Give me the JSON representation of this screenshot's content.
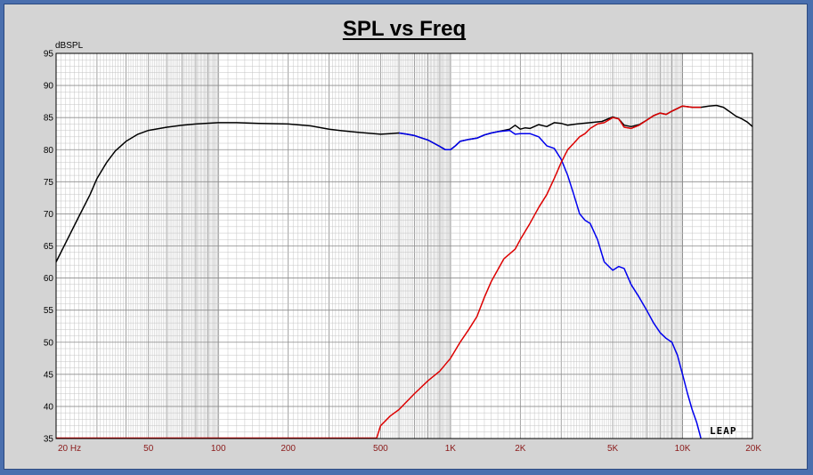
{
  "chart_data": {
    "type": "line",
    "title": "SPL vs Freq",
    "ylabel": "dBSPL",
    "xlabel": "",
    "x_scale": "log",
    "xlim": [
      20,
      20000
    ],
    "ylim": [
      35,
      95
    ],
    "grid": true,
    "y_ticks": [
      35,
      40,
      45,
      50,
      55,
      60,
      65,
      70,
      75,
      80,
      85,
      90,
      95
    ],
    "x_ticks": [
      {
        "value": 20,
        "label": "20  Hz"
      },
      {
        "value": 50,
        "label": "50"
      },
      {
        "value": 100,
        "label": "100"
      },
      {
        "value": 200,
        "label": "200"
      },
      {
        "value": 500,
        "label": "500"
      },
      {
        "value": 1000,
        "label": "1K"
      },
      {
        "value": 2000,
        "label": "2K"
      },
      {
        "value": 5000,
        "label": "5K"
      },
      {
        "value": 10000,
        "label": "10K"
      },
      {
        "value": 20000,
        "label": "20K"
      }
    ],
    "logo": "LEAP",
    "series": [
      {
        "color": "#000000",
        "x": [
          20,
          22,
          25,
          28,
          30,
          33,
          36,
          40,
          45,
          50,
          60,
          70,
          80,
          100,
          120,
          150,
          200,
          250,
          300,
          350,
          400,
          500,
          550,
          600,
          650,
          700,
          800,
          900,
          950,
          1000,
          1050,
          1100,
          1200,
          1300,
          1400,
          1500,
          1600,
          1800,
          1900,
          2000,
          2100,
          2200,
          2400,
          2600,
          2800,
          3000,
          3200,
          3500,
          4000,
          4500,
          5000,
          5300,
          5600,
          6000,
          6500,
          7000,
          7500,
          8000,
          8500,
          9000,
          10000,
          11000,
          12000,
          13000,
          14000,
          15000,
          16000,
          17000,
          18000,
          19000,
          20000
        ],
        "y": [
          62.5,
          65.5,
          69.5,
          73,
          75.5,
          78,
          79.8,
          81.3,
          82.4,
          83,
          83.5,
          83.8,
          84,
          84.2,
          84.2,
          84.1,
          84,
          83.7,
          83.2,
          82.9,
          82.7,
          82.4,
          82.5,
          82.6,
          82.4,
          82.2,
          81.5,
          80.5,
          80,
          80,
          80.6,
          81.3,
          81.6,
          81.8,
          82.3,
          82.6,
          82.8,
          83.2,
          83.8,
          83.2,
          83.4,
          83.3,
          83.9,
          83.6,
          84.2,
          84.1,
          83.8,
          84,
          84.2,
          84.4,
          85.1,
          84.8,
          83.8,
          83.6,
          83.9,
          84.6,
          85.3,
          85.7,
          85.5,
          86,
          86.8,
          86.6,
          86.6,
          86.8,
          86.9,
          86.6,
          85.9,
          85.2,
          84.8,
          84.3,
          83.6
        ]
      },
      {
        "color": "#0000ee",
        "x": [
          600,
          650,
          700,
          800,
          900,
          950,
          1000,
          1050,
          1100,
          1200,
          1300,
          1400,
          1500,
          1600,
          1800,
          1900,
          2000,
          2200,
          2400,
          2600,
          2800,
          3000,
          3200,
          3400,
          3600,
          3800,
          4000,
          4300,
          4600,
          5000,
          5300,
          5600,
          6000,
          6500,
          7000,
          7500,
          8000,
          8500,
          9000,
          9500,
          10000,
          10500,
          11000,
          11500,
          12000
        ],
        "y": [
          82.6,
          82.4,
          82.2,
          81.5,
          80.5,
          80,
          80,
          80.6,
          81.3,
          81.6,
          81.8,
          82.3,
          82.6,
          82.8,
          83,
          82.4,
          82.5,
          82.5,
          82,
          80.6,
          80.2,
          78.5,
          76,
          73,
          70,
          69,
          68.5,
          66,
          62.5,
          61.2,
          61.8,
          61.5,
          59,
          57,
          55,
          53,
          51.5,
          50.6,
          50,
          48,
          45,
          42,
          39.5,
          37.5,
          35
        ]
      },
      {
        "color": "#dd0000",
        "x": [
          480,
          500,
          550,
          600,
          700,
          800,
          900,
          1000,
          1100,
          1200,
          1300,
          1400,
          1500,
          1700,
          1900,
          2000,
          2200,
          2400,
          2600,
          2800,
          3000,
          3200,
          3400,
          3600,
          3800,
          4000,
          4300,
          4600,
          5000,
          5300,
          5600,
          6000,
          6500,
          7000,
          7500,
          8000,
          8500,
          9000,
          10000,
          11000,
          12000
        ],
        "y": [
          35,
          37,
          38.5,
          39.5,
          42,
          44,
          45.5,
          47.5,
          50,
          52,
          54,
          57,
          59.5,
          63,
          64.5,
          66,
          68.5,
          71,
          73,
          75.5,
          78,
          80,
          81,
          82,
          82.5,
          83.3,
          84,
          84.2,
          85,
          84.8,
          83.5,
          83.3,
          83.8,
          84.6,
          85.3,
          85.7,
          85.5,
          86,
          86.8,
          86.6,
          86.6
        ]
      }
    ]
  }
}
